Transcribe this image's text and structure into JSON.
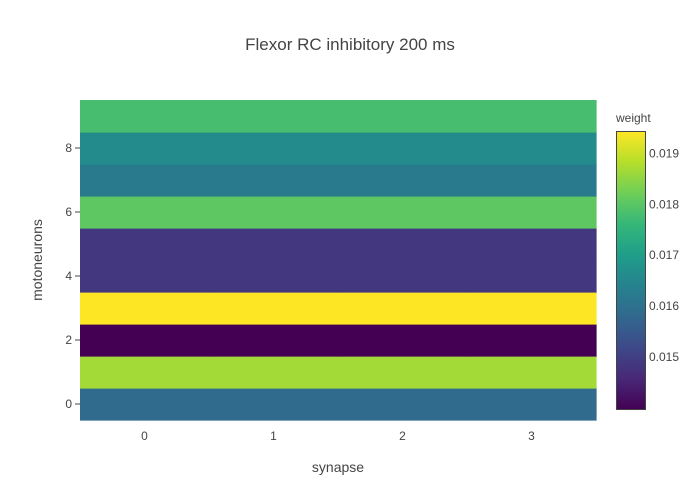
{
  "chart_data": {
    "type": "heatmap",
    "title": "Flexor RC inhibitory 200 ms",
    "xlabel": "synapse",
    "ylabel": "motoneurons",
    "x": [
      0,
      1,
      2,
      3
    ],
    "y": [
      0,
      1,
      2,
      3,
      4,
      5,
      6,
      7,
      8,
      9
    ],
    "x_ticks": [
      "0",
      "1",
      "2",
      "3"
    ],
    "y_ticks": [
      "0",
      "2",
      "4",
      "6",
      "8"
    ],
    "row_values": [
      0.01605,
      0.01886,
      0.01418,
      0.01962,
      0.01506,
      0.01506,
      0.01824,
      0.0164,
      0.0168,
      0.018
    ],
    "colorscale": "Viridis",
    "zlim": [
      0.01418,
      0.01962
    ],
    "colorbar": {
      "title": "weight",
      "ticks": [
        0.0152,
        0.0162,
        0.0172,
        0.0182,
        0.0192
      ],
      "tick_labels": [
        "0.015",
        "0.016",
        "0.017",
        "0.018",
        "0.019"
      ]
    }
  }
}
